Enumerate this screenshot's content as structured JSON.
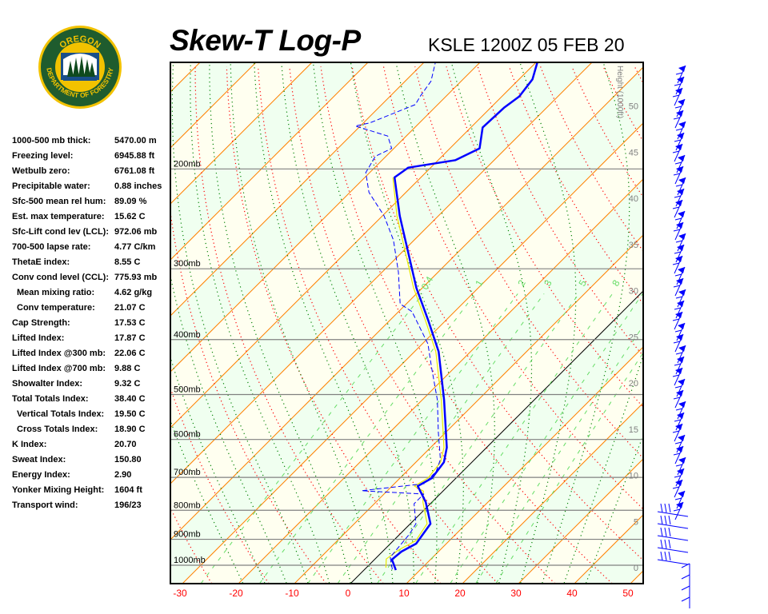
{
  "header": {
    "title": "Skew-T Log-P",
    "station": "KSLE 1200Z 05 FEB 20"
  },
  "logo": {
    "top_text": "OREGON",
    "bottom_text": "DEPARTMENT OF FORESTRY",
    "colors": {
      "ring": "#1f5c2e",
      "border": "#f2c200"
    }
  },
  "stats": [
    {
      "label": "1000-500 mb thick:",
      "value": "5470.00 m"
    },
    {
      "label": "Freezing level:",
      "value": "6945.88 ft"
    },
    {
      "label": "Wetbulb zero:",
      "value": "6761.08 ft"
    },
    {
      "label": "Precipitable water:",
      "value": "0.88 inches"
    },
    {
      "label": "Sfc-500 mean rel hum:",
      "value": "89.09 %"
    },
    {
      "label": "Est. max temperature:",
      "value": "15.62 C"
    },
    {
      "label": "Sfc-Lift cond lev (LCL):",
      "value": "972.06 mb"
    },
    {
      "label": "700-500 lapse rate:",
      "value": "4.77 C/km"
    },
    {
      "label": "ThetaE index:",
      "value": "8.55 C"
    },
    {
      "label": "Conv cond level (CCL):",
      "value": "775.93 mb"
    },
    {
      "label": "Mean mixing ratio:",
      "value": "4.62 g/kg",
      "indent": true
    },
    {
      "label": "Conv temperature:",
      "value": "21.07 C",
      "indent": true
    },
    {
      "label": "Cap Strength:",
      "value": "17.53 C"
    },
    {
      "label": "Lifted Index:",
      "value": "17.87 C"
    },
    {
      "label": "Lifted Index @300 mb:",
      "value": "22.06 C"
    },
    {
      "label": "Lifted Index @700 mb:",
      "value": "9.88 C"
    },
    {
      "label": "Showalter Index:",
      "value": "9.32 C"
    },
    {
      "label": "Total Totals Index:",
      "value": "38.40 C"
    },
    {
      "label": "Vertical Totals Index:",
      "value": "19.50 C",
      "indent": true
    },
    {
      "label": "Cross Totals Index:",
      "value": "18.90 C",
      "indent": true
    },
    {
      "label": "K Index:",
      "value": "20.70"
    },
    {
      "label": "Sweat Index:",
      "value": "150.80"
    },
    {
      "label": "Energy Index:",
      "value": "2.90"
    },
    {
      "label": "Yonker Mixing Height:",
      "value": "1604 ft"
    },
    {
      "label": "Transport wind:",
      "value": "196/23"
    }
  ],
  "chart_data": {
    "type": "line",
    "title": "Skew-T Log-P",
    "x_axis": {
      "ticks": [
        -30,
        -20,
        -10,
        0,
        10,
        20,
        30,
        40,
        50
      ],
      "tick_labels": [
        "-30",
        "-20",
        "-10",
        "0",
        "10",
        "20",
        "30",
        "40",
        "50"
      ],
      "unit": "C"
    },
    "y_axis": {
      "scale": "log",
      "pressure_levels": [
        200,
        300,
        400,
        500,
        600,
        700,
        800,
        900,
        1000
      ],
      "pressure_labels": [
        "200mb",
        "300mb",
        "400mb",
        "500mb",
        "600mb",
        "700mb",
        "800mb",
        "900mb",
        "1000mb"
      ],
      "range_mb": [
        1077,
        130
      ]
    },
    "height_axis": {
      "label": "Height (1000ft)",
      "ticks": [
        0,
        5,
        10,
        15,
        20,
        25,
        30,
        35,
        40,
        45,
        50
      ],
      "tick_labels": [
        "0",
        "5",
        "10",
        "15",
        "20",
        "25",
        "30",
        "35",
        "40",
        "45",
        "50"
      ]
    },
    "mixing_ratio_labels": [
      "0.4",
      "1",
      "2",
      "3",
      "5",
      "8"
    ],
    "mixing_ratios_gkg": [
      0.4,
      1,
      2,
      3,
      5,
      8,
      12,
      16,
      20
    ],
    "colors": {
      "temperature": "#0000ff",
      "dewpoint": "#0000ff",
      "parcel": "#e8e800",
      "isotherm": "#ff8000",
      "freezing_isotherm": "#000000",
      "dry_adiabat": "#ff0000",
      "moist_adiabat": "#008000",
      "mixing_ratio": "#66dd66",
      "band_a": "#fffff0",
      "band_b": "#f0fff0",
      "isobar": "#808080",
      "tick_labels": "#ff0000"
    },
    "series": [
      {
        "key": "temperature",
        "style": "solid-thick",
        "p": [
          1020,
          977,
          946,
          916,
          845,
          774,
          725,
          702,
          658,
          620,
          511,
          420,
          369,
          324,
          242,
          207,
          199,
          193,
          184,
          169,
          156,
          149,
          139,
          130
        ],
        "t": [
          5.7,
          3.1,
          3.4,
          4.6,
          3.6,
          -1.1,
          -5.4,
          -4.3,
          -5.0,
          -7.1,
          -16.1,
          -25.7,
          -33.3,
          -41.1,
          -56.9,
          -64.7,
          -64.0,
          -56.9,
          -54.7,
          -57.9,
          -57.6,
          -56.9,
          -57.6,
          -59.7
        ]
      },
      {
        "key": "dewpoint",
        "style": "dashed",
        "p": [
          1016,
          968,
          881,
          845,
          779,
          749,
          739,
          718,
          684,
          651,
          582,
          511,
          449,
          407,
          357,
          346,
          304,
          267,
          242,
          220,
          203,
          190,
          184,
          175,
          168,
          166,
          154,
          149,
          140,
          130
        ],
        "t": [
          4.9,
          2.4,
          1.7,
          1.0,
          -2.9,
          -2.9,
          -14.6,
          -4.7,
          -4.7,
          -6.1,
          -11.4,
          -17.3,
          -24.0,
          -29.0,
          -37.6,
          -41.1,
          -47.1,
          -53.7,
          -59.7,
          -66.6,
          -70.7,
          -71.9,
          -70.4,
          -73.3,
          -80.9,
          -78.9,
          -74.0,
          -74.6,
          -75.4,
          -77.9
        ]
      },
      {
        "key": "parcel",
        "style": "solid-thin",
        "p": [
          1010,
          975,
          940,
          905,
          845,
          774,
          740,
          725,
          702,
          658,
          620,
          511,
          420,
          369,
          324,
          242,
          207
        ],
        "t": [
          3.5,
          2.0,
          2.6,
          4.0,
          3.0,
          -1.6,
          -3.5,
          -6.0,
          -5.0,
          -5.6,
          -7.6,
          -16.6,
          -26.2,
          -33.8,
          -41.6,
          -57.4,
          -65.0
        ]
      }
    ]
  }
}
